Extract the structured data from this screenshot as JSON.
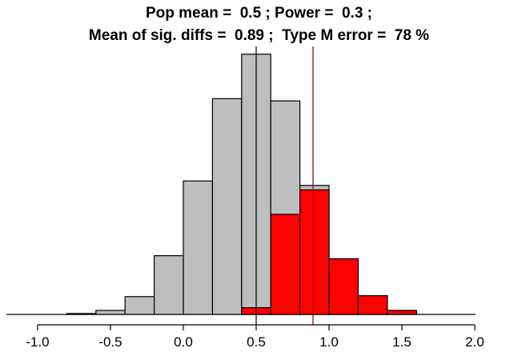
{
  "chart_data": {
    "type": "bar",
    "title_line1": "Pop mean =  0.5 ; Power =  0.3 ;",
    "title_line2": "Mean of sig. diffs =  0.89 ;  Type M error =  78 %",
    "xlabel": "",
    "ylabel": "",
    "xlim": [
      -1.0,
      2.0
    ],
    "x_ticks": [
      "-1.0",
      "-0.5",
      "0.0",
      "0.5",
      "1.0",
      "1.5",
      "2.0"
    ],
    "x_tick_values": [
      -1.0,
      -0.5,
      0.0,
      0.5,
      1.0,
      1.5,
      2.0
    ],
    "y_axis_shown": false,
    "bin_width": 0.2,
    "bin_starts": [
      -0.8,
      -0.6,
      -0.4,
      -0.2,
      0.0,
      0.2,
      0.4,
      0.6,
      0.8,
      1.0,
      1.2,
      1.4
    ],
    "series": [
      {
        "values": [
          0.004,
          0.018,
          0.08,
          0.264,
          0.6,
          0.97,
          1.17,
          0.96,
          0.58,
          0.25,
          0.084,
          0.018
        ]
      },
      {
        "values": [
          0,
          0,
          0,
          0,
          0,
          0,
          0.03,
          0.45,
          0.56,
          0.25,
          0.084,
          0.018
        ]
      }
    ],
    "vertical_lines": [
      {
        "x": 0.5,
        "color": "#000000"
      },
      {
        "x": 0.89,
        "color": "#8b0000"
      }
    ],
    "colors": {
      "all": "#bebebe",
      "significant": "#ff0000"
    }
  }
}
